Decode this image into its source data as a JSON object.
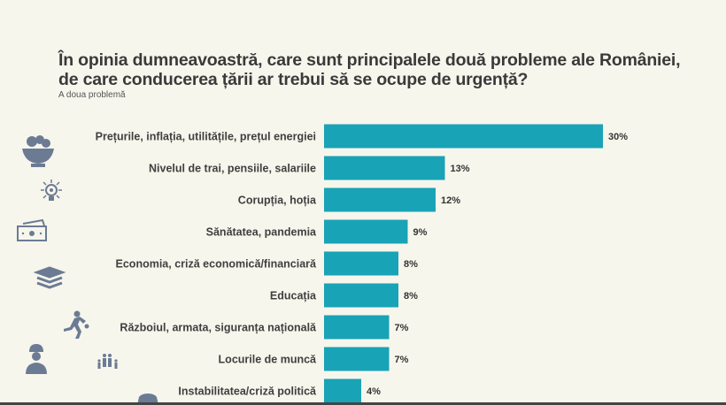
{
  "chart_data": {
    "type": "bar",
    "orientation": "horizontal",
    "title": "În opinia dumneavoastră, care sunt principalele două probleme ale României, de care conducerea țării ar trebui să se ocupe de urgență?",
    "subtitle": "A doua problemă",
    "categories": [
      "Prețurile, inflația, utilitățile, prețul energiei",
      "Nivelul de trai, pensiile, salariile",
      "Corupția, hoția",
      "Sănătatea, pandemia",
      "Economia, criză economică/financiară",
      "Educația",
      "Războiul, armata, siguranța națională",
      "Locurile de muncă",
      "Instabilitatea/criză politică"
    ],
    "values": [
      30,
      13,
      12,
      9,
      8,
      8,
      7,
      7,
      4
    ],
    "value_labels": [
      "30%",
      "13%",
      "12%",
      "9%",
      "8%",
      "8%",
      "7%",
      "7%",
      "4%"
    ],
    "unit": "%",
    "grid": false,
    "bar_color": "#19a3b6",
    "background": "#f7f6ec",
    "icons": [
      "fruit-bowl-icon",
      "lightbulb-icon",
      "money-icon",
      "books-icon",
      "runner-icon",
      "worker-icon",
      "family-icon",
      "car-icon"
    ]
  }
}
